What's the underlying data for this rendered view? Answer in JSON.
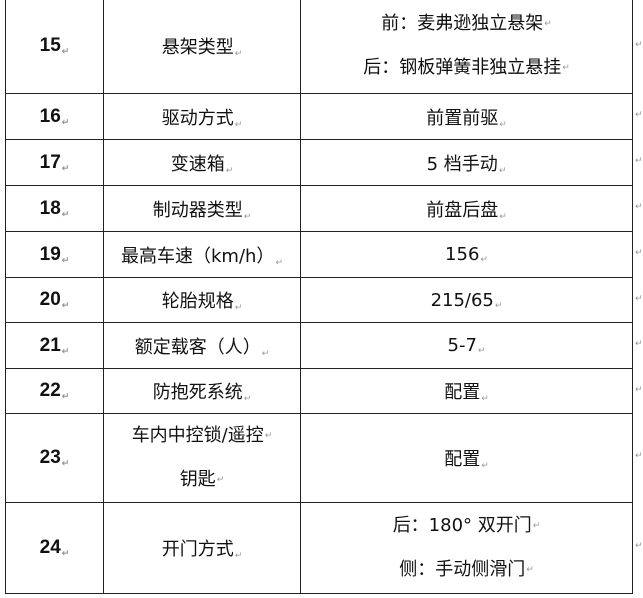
{
  "rows": [
    {
      "no": "15",
      "name": [
        "悬架类型"
      ],
      "value": [
        "前：麦弗逊独立悬架",
        "后：钢板弹簧非独立悬挂"
      ]
    },
    {
      "no": "16",
      "name": [
        "驱动方式"
      ],
      "value": [
        "前置前驱"
      ]
    },
    {
      "no": "17",
      "name": [
        "变速箱"
      ],
      "value": [
        "5 档手动"
      ]
    },
    {
      "no": "18",
      "name": [
        "制动器类型"
      ],
      "value": [
        "前盘后盘"
      ]
    },
    {
      "no": "19",
      "name": [
        "最高车速（km/h）"
      ],
      "value": [
        "156"
      ]
    },
    {
      "no": "20",
      "name": [
        "轮胎规格"
      ],
      "value": [
        "215/65"
      ]
    },
    {
      "no": "21",
      "name": [
        "额定载客（人）"
      ],
      "value": [
        "5-7"
      ]
    },
    {
      "no": "22",
      "name": [
        "防抱死系统"
      ],
      "value": [
        "配置"
      ]
    },
    {
      "no": "23",
      "name": [
        "车内中控锁/遥控",
        "钥匙"
      ],
      "value": [
        "配置"
      ]
    },
    {
      "no": "24",
      "name": [
        "开门方式"
      ],
      "value": [
        "后：180° 双开门",
        "侧：手动侧滑门"
      ]
    }
  ],
  "return_mark": "↵"
}
